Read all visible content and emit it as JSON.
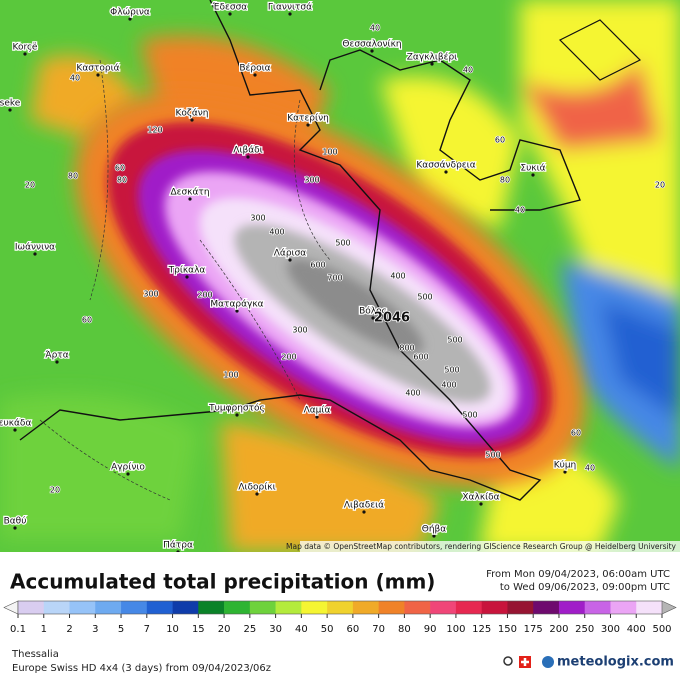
{
  "map": {
    "cities": [
      "Φλώρινα",
      "Έδεσσα",
      "Γιαννιτσά",
      "Korçë",
      "Καστοριά",
      "Βέροια",
      "Θεσσαλονίκη",
      "Ζαγκλιβέρι",
      "seke",
      "Κοζάνη",
      "Κατερίνη",
      "Λιβάδι",
      "Κασσάνδρεια",
      "Συκιά",
      "Δεσκάτη",
      "Ιωάννινα",
      "Λάρισα",
      "Τρίκαλα",
      "Ματαράγκα",
      "Βόλος",
      "Άρτα",
      "ευκάδα",
      "Τυμφρηστός",
      "Λαμία",
      "Αγρίνιο",
      "Κύμη",
      "Λιδορίκι",
      "Λιβαδειά",
      "Χαλκίδα",
      "Θήβα",
      "Βαθύ",
      "Πάτρα"
    ],
    "contour_labels": [
      "40",
      "40",
      "40",
      "60",
      "80",
      "100",
      "120",
      "60",
      "80",
      "300",
      "300",
      "400",
      "500",
      "600",
      "700",
      "400",
      "500",
      "800",
      "600",
      "500",
      "400",
      "300",
      "300",
      "200",
      "100",
      "200",
      "60",
      "80",
      "500",
      "500",
      "500",
      "400",
      "60",
      "40",
      "20",
      "20",
      "20",
      "40"
    ],
    "max_label": "2046",
    "attribution": "Map data © OpenStreetMap contributors, rendering GIScience Research Group @ Heidelberg University"
  },
  "legend": {
    "title": "Accumulated total precipitation (mm)",
    "time_from": "From Mon 09/04/2023, 06:00am UTC",
    "time_to": "to Wed 09/06/2023, 09:00pm UTC",
    "ticks": [
      0.1,
      1,
      2,
      3,
      5,
      7,
      10,
      15,
      20,
      25,
      30,
      40,
      50,
      60,
      70,
      80,
      90,
      100,
      125,
      150,
      175,
      200,
      250,
      300,
      400,
      500
    ],
    "colors": [
      "#d9cdf0",
      "#b9d5f8",
      "#96c3f8",
      "#6eaaf0",
      "#4688e6",
      "#2060d2",
      "#0f3caa",
      "#0a8228",
      "#2eb432",
      "#6ed23c",
      "#b4eb3c",
      "#f5f532",
      "#f0d22d",
      "#f0aa28",
      "#f08228",
      "#f06446",
      "#f04678",
      "#e62850",
      "#c8143c",
      "#961432",
      "#6e0a6e",
      "#a01ec8",
      "#c864e6",
      "#eba5f5",
      "#f5e1fa"
    ],
    "under_color": "#f4f4f4",
    "over_color": "#b4b4b4"
  },
  "footer": {
    "region": "Thessalia",
    "model": "Europe Swiss HD 4x4  (3 days)  from  09/04/2023/06z",
    "brand": "meteologix.com"
  }
}
